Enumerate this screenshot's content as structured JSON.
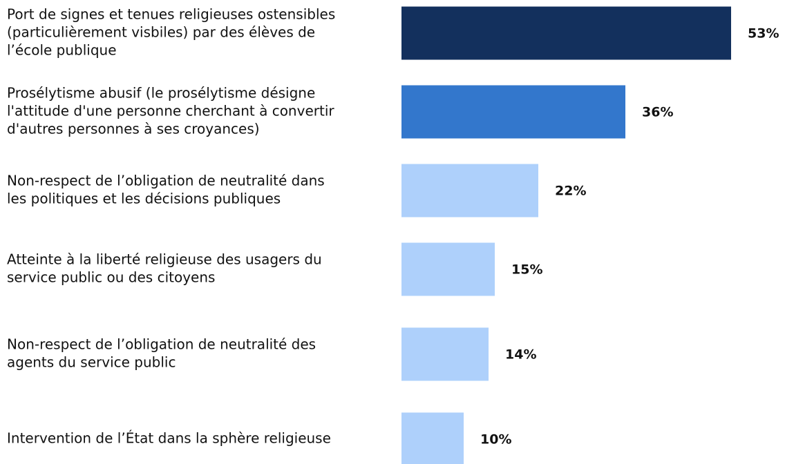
{
  "chart_data": {
    "type": "barh",
    "categories": [
      [
        "Port de signes et tenues religieuses ostensibles",
        "(particulièrement visbiles) par des élèves de",
        "l’école publique"
      ],
      [
        "Prosélytisme abusif (le prosélytisme désigne",
        "l'attitude d'une personne cherchant à convertir",
        "d'autres personnes à ses croyances)"
      ],
      [
        "Non-respect de l’obligation de neutralité dans",
        "les politiques et les décisions publiques"
      ],
      [
        "Atteinte à la liberté religieuse des usagers du",
        "service public ou des citoyens"
      ],
      [
        "Non-respect de l’obligation de neutralité des",
        "agents du service public"
      ],
      [
        "Intervention de l’État dans la sphère religieuse"
      ]
    ],
    "values": [
      53,
      36,
      22,
      15,
      14,
      10
    ],
    "value_labels": [
      "53%",
      "36%",
      "22%",
      "15%",
      "14%",
      "10%"
    ],
    "colors": [
      "#13305d",
      "#3377cc",
      "#aed0fb",
      "#aed0fb",
      "#aed0fb",
      "#aed0fb"
    ]
  }
}
